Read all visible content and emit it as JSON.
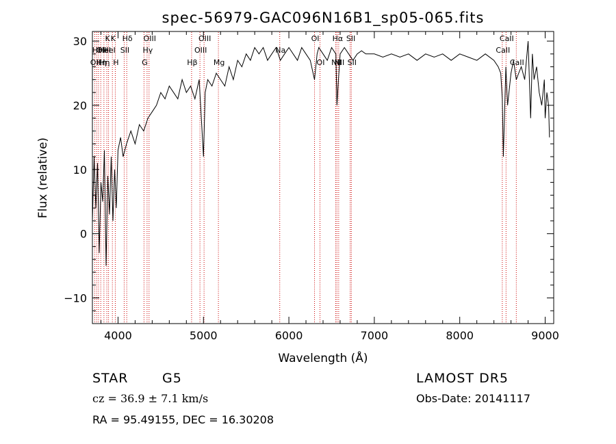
{
  "chart_data": {
    "type": "line",
    "title": "spec-56979-GAC096N16B1_sp05-065.fits",
    "xlabel": "Wavelength (Å)",
    "ylabel": "Flux (relative)",
    "xlim": [
      3700,
      9100
    ],
    "ylim": [
      -14,
      31.5
    ],
    "xticks": [
      4000,
      5000,
      6000,
      7000,
      8000,
      9000
    ],
    "yticks": [
      -10,
      0,
      10,
      20,
      30
    ],
    "grid": false,
    "line_color": "#000000",
    "marker_color": "#cc0000",
    "series": [
      {
        "x": [
          3700,
          3720,
          3740,
          3760,
          3780,
          3800,
          3820,
          3840,
          3860,
          3880,
          3900,
          3920,
          3940,
          3960,
          3980,
          4000,
          4030,
          4060,
          4100,
          4150,
          4200,
          4250,
          4300,
          4350,
          4400,
          4450,
          4500,
          4550,
          4600,
          4650,
          4700,
          4750,
          4800,
          4850,
          4900,
          4950,
          5000,
          5020,
          5050,
          5100,
          5150,
          5200,
          5250,
          5300,
          5350,
          5400,
          5450,
          5500,
          5550,
          5600,
          5650,
          5700,
          5750,
          5800,
          5850,
          5900,
          5950,
          6000,
          6050,
          6100,
          6150,
          6200,
          6250,
          6300,
          6330,
          6350,
          6400,
          6450,
          6500,
          6550,
          6563,
          6580,
          6600,
          6650,
          6700,
          6750,
          6800,
          6850,
          6900,
          6950,
          7000,
          7100,
          7200,
          7300,
          7400,
          7500,
          7600,
          7700,
          7800,
          7900,
          8000,
          8100,
          8200,
          8300,
          8400,
          8450,
          8480,
          8498,
          8510,
          8540,
          8560,
          8600,
          8630,
          8662,
          8690,
          8720,
          8760,
          8800,
          8830,
          8850,
          8870,
          8900,
          8930,
          8960,
          8990,
          9000,
          9020,
          9040,
          9050
        ],
        "y": [
          2,
          12,
          4,
          11,
          -3,
          8,
          5,
          13,
          -5,
          9,
          3,
          12,
          2,
          10,
          4,
          13,
          15,
          12,
          14,
          16,
          14,
          17,
          16,
          18,
          19,
          20,
          22,
          21,
          23,
          22,
          21,
          24,
          22,
          23,
          21,
          24,
          12,
          22,
          24,
          23,
          25,
          24,
          23,
          26,
          24,
          27,
          26,
          28,
          27,
          29,
          28,
          29,
          27,
          28,
          29,
          27,
          28,
          29,
          28,
          27,
          29,
          28,
          27,
          24,
          28,
          29,
          28,
          27,
          29,
          28,
          20,
          24,
          28,
          29,
          28,
          27,
          28,
          28.5,
          28,
          28,
          28,
          27.5,
          28,
          27.5,
          28,
          27,
          28,
          27.5,
          28,
          27,
          28,
          27.5,
          27,
          28,
          27,
          26,
          25,
          21,
          12,
          26,
          20,
          25,
          27,
          24,
          25,
          26,
          24,
          30,
          18,
          28,
          24,
          26,
          22,
          20,
          24,
          18,
          22,
          20,
          15
        ]
      }
    ],
    "line_markers": [
      {
        "x": 3727,
        "labels": [
          "OII"
        ],
        "row": 2
      },
      {
        "x": 3750,
        "labels": [
          "Hθ"
        ],
        "row": 1
      },
      {
        "x": 3771,
        "labels": [
          "H"
        ],
        "row": 2
      },
      {
        "x": 3798,
        "labels": [
          "OII",
          "Hη"
        ],
        "row": 1
      },
      {
        "x": 3835,
        "labels": [
          "HeI",
          "Hη"
        ],
        "row": 1
      },
      {
        "x": 3869,
        "labels": [
          "K"
        ],
        "row": 0
      },
      {
        "x": 3889,
        "labels": [
          "HeI"
        ],
        "row": 1
      },
      {
        "x": 3934,
        "labels": [
          "K"
        ],
        "row": 0
      },
      {
        "x": 3968,
        "labels": [
          "H"
        ],
        "row": 2
      },
      {
        "x": 4072,
        "labels": [
          "SII"
        ],
        "row": 1
      },
      {
        "x": 4102,
        "labels": [
          "Hδ"
        ],
        "row": 0
      },
      {
        "x": 4304,
        "labels": [
          "G"
        ],
        "row": 2
      },
      {
        "x": 4340,
        "labels": [
          "Hγ"
        ],
        "row": 1
      },
      {
        "x": 4363,
        "labels": [
          "OIII"
        ],
        "row": 0
      },
      {
        "x": 4861,
        "labels": [
          "Hβ"
        ],
        "row": 2
      },
      {
        "x": 4959,
        "labels": [
          "OIII"
        ],
        "row": 1
      },
      {
        "x": 5007,
        "labels": [
          "OIII"
        ],
        "row": 0
      },
      {
        "x": 5175,
        "labels": [
          "Mg"
        ],
        "row": 2
      },
      {
        "x": 5893,
        "labels": [
          "Na"
        ],
        "row": 1
      },
      {
        "x": 6300,
        "labels": [
          "OI"
        ],
        "row": 0
      },
      {
        "x": 6364,
        "labels": [
          "OI"
        ],
        "row": 2
      },
      {
        "x": 6548,
        "labels": [
          "NII"
        ],
        "row": 2
      },
      {
        "x": 6563,
        "labels": [
          "Hα"
        ],
        "row": 0
      },
      {
        "x": 6583,
        "labels": [
          "NII"
        ],
        "row": 2
      },
      {
        "x": 6717,
        "labels": [
          "SII"
        ],
        "row": 0
      },
      {
        "x": 6731,
        "labels": [
          "SII"
        ],
        "row": 2
      },
      {
        "x": 8498,
        "labels": [
          "CaII"
        ],
        "row": 1
      },
      {
        "x": 8542,
        "labels": [
          "CaII"
        ],
        "row": 0
      },
      {
        "x": 8662,
        "labels": [
          "CaII"
        ],
        "row": 2
      }
    ]
  },
  "info": {
    "object_type": "STAR",
    "subclass": "G5",
    "survey": "LAMOST  DR5",
    "cz": "cz = 36.9 ± 7.1 km/s",
    "obs_date": "Obs-Date: 20141117",
    "coords": "RA =  95.49155, DEC =  16.30208"
  }
}
